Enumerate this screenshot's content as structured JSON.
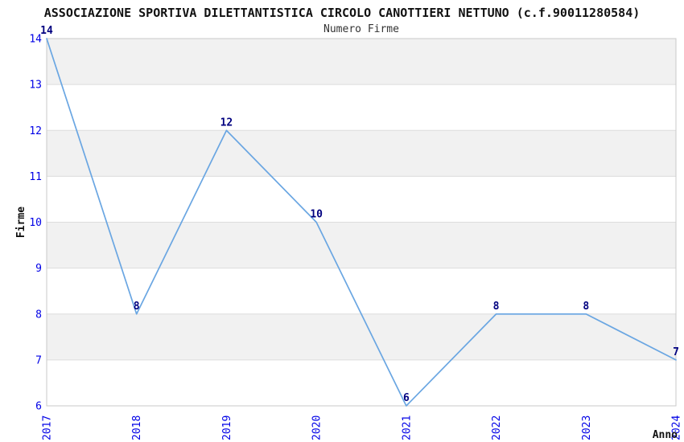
{
  "chart_data": {
    "type": "line",
    "title": "ASSOCIAZIONE SPORTIVA DILETTANTISTICA CIRCOLO CANOTTIERI NETTUNO (c.f.90011280584)",
    "subtitle": "Numero Firme",
    "xlabel": "Anno",
    "ylabel": "Firme",
    "categories": [
      "2017",
      "2018",
      "2019",
      "2020",
      "2021",
      "2022",
      "2023",
      "2024"
    ],
    "values": [
      14,
      8,
      12,
      10,
      6,
      8,
      8,
      7
    ],
    "ylim": [
      6,
      14
    ],
    "ytick_step": 1,
    "grid": "horizontal-only",
    "band_pattern": "alternating-gray-bands",
    "legend": "none",
    "point_markers": false,
    "x_tick_rotation": -90,
    "colors": {
      "line": "#6aa6e2",
      "tick_label": "#0000e6",
      "point_label": "#000080",
      "band": "#f1f1f1",
      "grid_line": "#dcdcdc",
      "plot_border": "#c9c9c9",
      "title": "#111111",
      "subtitle": "#333333",
      "axis_label": "#111111",
      "background": "#ffffff"
    }
  }
}
